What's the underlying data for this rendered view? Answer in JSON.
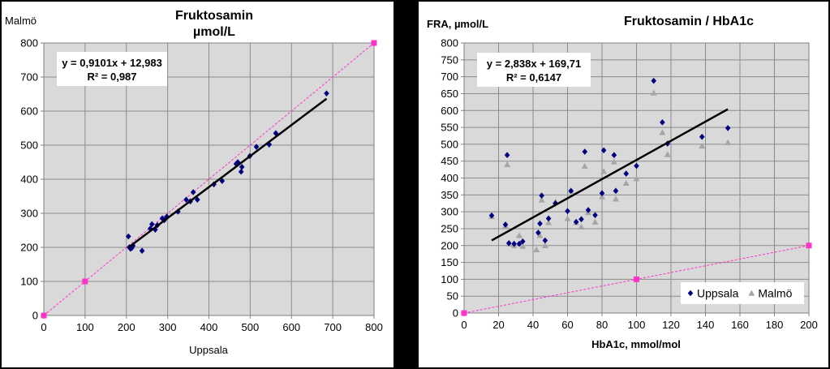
{
  "chart_data": [
    {
      "type": "scatter",
      "title": [
        "Fruktosamin",
        "µmol/L"
      ],
      "xlabel": "Uppsala",
      "ylabel": "Malmö",
      "xlim": [
        0,
        800
      ],
      "ylim": [
        0,
        800
      ],
      "xticks": [
        "0",
        "100",
        "200",
        "300",
        "400",
        "500",
        "600",
        "700",
        "800"
      ],
      "yticks": [
        "0",
        "100",
        "200",
        "300",
        "400",
        "500",
        "600",
        "700",
        "800"
      ],
      "grid": true,
      "series": [
        {
          "color": "#000080",
          "marker": "diamond",
          "points": [
            [
              205,
              232
            ],
            [
              207,
              200
            ],
            [
              210,
              196
            ],
            [
              213,
              198
            ],
            [
              216,
              205
            ],
            [
              238,
              190
            ],
            [
              258,
              255
            ],
            [
              262,
              268
            ],
            [
              270,
              252
            ],
            [
              275,
              265
            ],
            [
              287,
              285
            ],
            [
              292,
              280
            ],
            [
              298,
              290
            ],
            [
              325,
              305
            ],
            [
              345,
              340
            ],
            [
              355,
              335
            ],
            [
              362,
              362
            ],
            [
              372,
              340
            ],
            [
              412,
              385
            ],
            [
              432,
              395
            ],
            [
              466,
              445
            ],
            [
              470,
              450
            ],
            [
              478,
              422
            ],
            [
              480,
              436
            ],
            [
              499,
              468
            ],
            [
              515,
              495
            ],
            [
              546,
              502
            ],
            [
              562,
              535
            ],
            [
              685,
              652
            ]
          ]
        }
      ],
      "reference_line": {
        "color": "#ff33cc",
        "points": [
          [
            0,
            0
          ],
          [
            100,
            100
          ],
          [
            800,
            800
          ]
        ]
      },
      "trendline": {
        "x": [
          205,
          685
        ],
        "y": [
          199.6,
          636.4
        ]
      },
      "equation": [
        "y = 0,9101x + 12,983",
        "R² = 0,987"
      ]
    },
    {
      "type": "scatter",
      "title": "Fruktosamin / HbA1c",
      "xlabel": "HbA1c, mmol/mol",
      "ylabel": "FRA, µmol/L",
      "xlim": [
        0,
        200
      ],
      "ylim": [
        0,
        800
      ],
      "xticks": [
        "0",
        "20",
        "40",
        "60",
        "80",
        "100",
        "120",
        "140",
        "160",
        "180",
        "200"
      ],
      "yticks": [
        "0",
        "50",
        "100",
        "150",
        "200",
        "250",
        "300",
        "350",
        "400",
        "450",
        "500",
        "550",
        "600",
        "650",
        "700",
        "750",
        "800"
      ],
      "grid": true,
      "legend": "bottom-right",
      "series": [
        {
          "name": "Uppsala",
          "color": "#000080",
          "marker": "diamond",
          "points": [
            [
              16,
              289
            ],
            [
              24,
              262
            ],
            [
              25,
              468
            ],
            [
              26,
              207
            ],
            [
              29,
              205
            ],
            [
              32,
              205
            ],
            [
              34,
              212
            ],
            [
              43,
              238
            ],
            [
              44,
              265
            ],
            [
              45,
              348
            ],
            [
              47,
              215
            ],
            [
              49,
              280
            ],
            [
              53,
              325
            ],
            [
              60,
              302
            ],
            [
              62,
              362
            ],
            [
              65,
              270
            ],
            [
              68,
              278
            ],
            [
              70,
              478
            ],
            [
              72,
              305
            ],
            [
              76,
              290
            ],
            [
              81,
              482
            ],
            [
              80,
              355
            ],
            [
              87,
              468
            ],
            [
              88,
              362
            ],
            [
              94,
              413
            ],
            [
              100,
              436
            ],
            [
              110,
              688
            ],
            [
              115,
              565
            ],
            [
              118,
              502
            ],
            [
              138,
              522
            ],
            [
              153,
              548
            ]
          ]
        },
        {
          "name": "Malmö",
          "color": "#a6a6a6",
          "marker": "triangle",
          "points": [
            [
              16,
              286
            ],
            [
              24,
              258
            ],
            [
              25,
              440
            ],
            [
              26,
              205
            ],
            [
              29,
              200
            ],
            [
              32,
              230
            ],
            [
              34,
              198
            ],
            [
              42,
              188
            ],
            [
              44,
              230
            ],
            [
              45,
              335
            ],
            [
              47,
              200
            ],
            [
              49,
              268
            ],
            [
              53,
              330
            ],
            [
              60,
              280
            ],
            [
              62,
              362
            ],
            [
              65,
              268
            ],
            [
              68,
              255
            ],
            [
              70,
              435
            ],
            [
              72,
              298
            ],
            [
              76,
              270
            ],
            [
              81,
              420
            ],
            [
              80,
              345
            ],
            [
              87,
              448
            ],
            [
              88,
              338
            ],
            [
              94,
              385
            ],
            [
              100,
              398
            ],
            [
              110,
              652
            ],
            [
              115,
              535
            ],
            [
              118,
              470
            ],
            [
              138,
              495
            ],
            [
              153,
              505
            ]
          ]
        }
      ],
      "reference_line": {
        "color": "#ff33cc",
        "points": [
          [
            0,
            0
          ],
          [
            100,
            100
          ],
          [
            200,
            200
          ]
        ]
      },
      "trendline": {
        "x": [
          16,
          153
        ],
        "y": [
          215.1,
          603.9
        ]
      },
      "equation": [
        "y = 2,838x + 169,71",
        "R² = 0,6147"
      ]
    }
  ]
}
